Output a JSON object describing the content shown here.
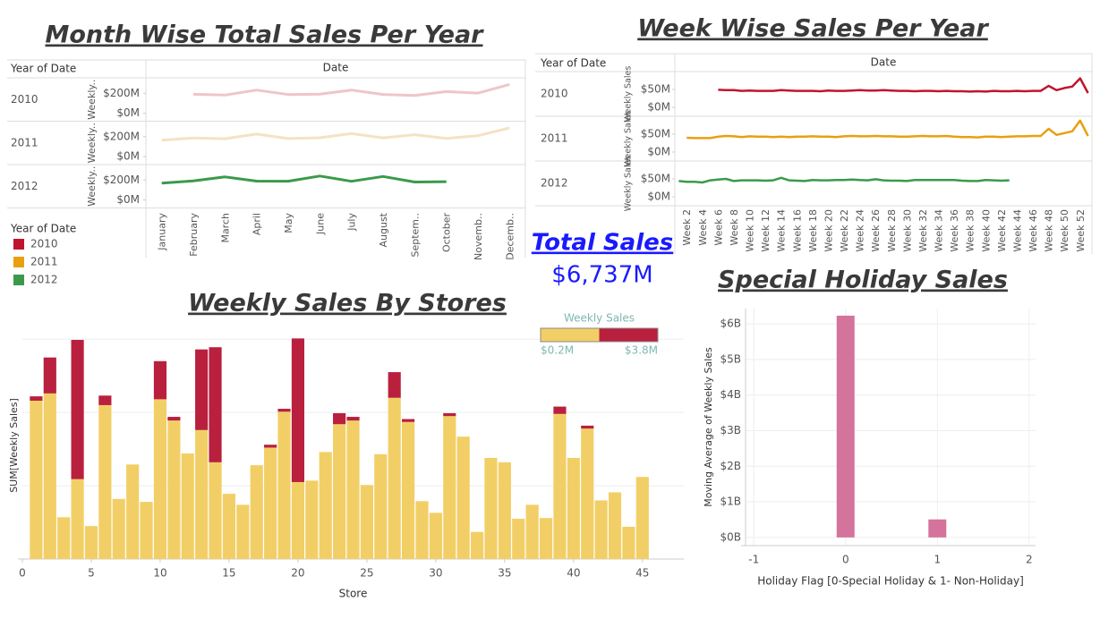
{
  "chart_data": [
    {
      "type": "line",
      "title": "Month Wise Total Sales Per Year",
      "row_header": "Year of Date",
      "column_header": "Date",
      "ylabel": "Weekly..",
      "legend_title": "Year of Date",
      "categories": [
        "January",
        "February",
        "March",
        "April",
        "May",
        "June",
        "July",
        "August",
        "Septem..",
        "October",
        "Novemb..",
        "Decemb.."
      ],
      "ylim": [
        -80000000,
        355000000
      ],
      "yticks": [
        {
          "value": 0,
          "label": "$0M"
        },
        {
          "value": 200000000,
          "label": "$200M"
        }
      ],
      "series": [
        {
          "name": "2010",
          "color": "#c0152f",
          "line_color": "#efc5ca",
          "values": [
            null,
            190000000,
            182000000,
            232000000,
            187000000,
            192000000,
            232000000,
            188000000,
            178000000,
            217000000,
            202000000,
            289000000
          ]
        },
        {
          "name": "2011",
          "color": "#e8a010",
          "line_color": "#f5e2c4",
          "values": [
            164000000,
            186000000,
            179000000,
            226000000,
            181000000,
            189000000,
            230000000,
            188000000,
            220000000,
            183000000,
            210000000,
            288000000
          ]
        },
        {
          "name": "2012",
          "color": "#3a9a4a",
          "line_color": "#3a9a4a",
          "values": [
            169000000,
            192000000,
            231000000,
            189000000,
            188000000,
            240000000,
            187000000,
            236000000,
            180000000,
            184000000,
            null,
            null
          ]
        }
      ]
    },
    {
      "type": "line",
      "title": "Week Wise Sales Per Year",
      "row_header": "Year of Date",
      "column_header": "Date",
      "ylabel": "Weekly Sales",
      "categories": [
        null,
        "Week 2",
        null,
        "Week 4",
        null,
        "Week 6",
        null,
        "Week 8",
        null,
        "Week 10",
        null,
        "Week 12",
        null,
        "Week 14",
        null,
        "Week 16",
        null,
        "Week 18",
        null,
        "Week 20",
        null,
        "Week 22",
        null,
        "Week 24",
        null,
        "Week 26",
        null,
        "Week 28",
        null,
        "Week 30",
        null,
        "Week 32",
        null,
        "Week 34",
        null,
        "Week 36",
        null,
        "Week 38",
        null,
        "Week 40",
        null,
        "Week 42",
        null,
        "Week 44",
        null,
        "Week 46",
        null,
        "Week 48",
        null,
        "Week 50",
        null,
        "Week 52",
        null
      ],
      "ylim": [
        -25000000,
        100000000
      ],
      "yticks": [
        {
          "value": 0,
          "label": "$0M"
        },
        {
          "value": 50000000,
          "label": "$50M"
        }
      ],
      "series": [
        {
          "name": "2010",
          "color": "#c0152f",
          "values": [
            null,
            null,
            null,
            null,
            null,
            49000000,
            48000000,
            48000000,
            46000000,
            47000000,
            46000000,
            46000000,
            46000000,
            48000000,
            47000000,
            46000000,
            46000000,
            46000000,
            45000000,
            47000000,
            46000000,
            46000000,
            47000000,
            48000000,
            47000000,
            47000000,
            48000000,
            47000000,
            46000000,
            46000000,
            45000000,
            46000000,
            46000000,
            45000000,
            46000000,
            45000000,
            45000000,
            44000000,
            45000000,
            44000000,
            46000000,
            45000000,
            45000000,
            46000000,
            45000000,
            46000000,
            46000000,
            60000000,
            48000000,
            54000000,
            58000000,
            81000000,
            40000000
          ]
        },
        {
          "name": "2011",
          "color": "#e8a010",
          "values": [
            null,
            40000000,
            39000000,
            39000000,
            39000000,
            43000000,
            45000000,
            44000000,
            42000000,
            44000000,
            43000000,
            43000000,
            42000000,
            43000000,
            42000000,
            43000000,
            43000000,
            44000000,
            43000000,
            43000000,
            42000000,
            44000000,
            45000000,
            44000000,
            44000000,
            45000000,
            44000000,
            44000000,
            43000000,
            43000000,
            44000000,
            45000000,
            44000000,
            44000000,
            45000000,
            43000000,
            42000000,
            42000000,
            41000000,
            43000000,
            43000000,
            42000000,
            43000000,
            44000000,
            44000000,
            45000000,
            45000000,
            65000000,
            48000000,
            53000000,
            58000000,
            88000000,
            45000000
          ]
        },
        {
          "name": "2012",
          "color": "#3a9a4a",
          "values": [
            44000000,
            42000000,
            42000000,
            40000000,
            46000000,
            48000000,
            50000000,
            44000000,
            46000000,
            46000000,
            46000000,
            45000000,
            46000000,
            53000000,
            46000000,
            45000000,
            44000000,
            47000000,
            46000000,
            46000000,
            47000000,
            47000000,
            48000000,
            47000000,
            46000000,
            49000000,
            46000000,
            45000000,
            45000000,
            44000000,
            47000000,
            47000000,
            47000000,
            47000000,
            47000000,
            47000000,
            45000000,
            44000000,
            44000000,
            47000000,
            46000000,
            45000000,
            46000000,
            null,
            null,
            null,
            null,
            null,
            null,
            null,
            null,
            null,
            null
          ]
        }
      ]
    },
    {
      "type": "bar",
      "stacked": true,
      "title": "Weekly Sales By Stores",
      "xlabel": "Store",
      "ylabel": "SUM[Weekly Sales]",
      "x": [
        1,
        2,
        3,
        4,
        5,
        6,
        7,
        8,
        9,
        10,
        11,
        12,
        13,
        14,
        15,
        16,
        17,
        18,
        19,
        20,
        21,
        22,
        23,
        24,
        25,
        26,
        27,
        28,
        29,
        30,
        31,
        32,
        33,
        34,
        35,
        36,
        37,
        38,
        39,
        40,
        41,
        42,
        43,
        44,
        45
      ],
      "xlim": [
        0,
        48
      ],
      "xticks": [
        0,
        5,
        10,
        15,
        20,
        25,
        30,
        35,
        40,
        45
      ],
      "ylim": [
        0,
        310000000
      ],
      "yticks": [
        0,
        100000000,
        200000000,
        300000000
      ],
      "grid": true,
      "color_scale": {
        "title": "Weekly Sales",
        "min": {
          "value": 200000,
          "label": "$0.2M"
        },
        "max": {
          "value": 3800000,
          "label": "$3.8M"
        }
      },
      "series": [
        {
          "color": "#f2cf66",
          "values": [
            216000000,
            226000000,
            57000000,
            109000000,
            45000000,
            210000000,
            82000000,
            129000000,
            78000000,
            218000000,
            189000000,
            144000000,
            176000000,
            132000000,
            89000000,
            74000000,
            128000000,
            152000000,
            201000000,
            105000000,
            107000000,
            146000000,
            184000000,
            189000000,
            101000000,
            143000000,
            220000000,
            187000000,
            79000000,
            63000000,
            195000000,
            167000000,
            37000000,
            138000000,
            132000000,
            55000000,
            74000000,
            56000000,
            198000000,
            138000000,
            178000000,
            80000000,
            91000000,
            44000000,
            112000000
          ]
        },
        {
          "color": "#b9203e",
          "values": [
            6000000,
            49000000,
            0,
            190000000,
            0,
            13000000,
            0,
            0,
            0,
            52000000,
            5000000,
            0,
            110000000,
            157000000,
            0,
            0,
            0,
            4000000,
            4000000,
            196000000,
            0,
            0,
            15000000,
            5000000,
            0,
            0,
            35000000,
            4000000,
            0,
            0,
            4000000,
            0,
            0,
            0,
            0,
            0,
            0,
            0,
            10000000,
            0,
            4000000,
            0,
            0,
            0,
            0
          ]
        }
      ]
    },
    {
      "type": "bar",
      "title": "Special Holiday Sales",
      "xlabel": "Holiday Flag [0-Special Holiday & 1- Non-Holiday]",
      "ylabel": "Moving Average of Weekly Sales",
      "x": [
        0,
        1
      ],
      "values": [
        6231000000,
        506000000
      ],
      "color": "#d4739b",
      "xlim": [
        -1.09,
        2.07
      ],
      "xticks": [
        -1,
        0,
        1,
        2
      ],
      "ylim": [
        -230000000,
        6430000000
      ],
      "yticks": [
        {
          "value": 0,
          "label": "$0B"
        },
        {
          "value": 1000000000,
          "label": "$1B"
        },
        {
          "value": 2000000000,
          "label": "$2B"
        },
        {
          "value": 3000000000,
          "label": "$3B"
        },
        {
          "value": 4000000000,
          "label": "$4B"
        },
        {
          "value": 5000000000,
          "label": "$5B"
        },
        {
          "value": 6000000000,
          "label": "$6B"
        }
      ],
      "grid": true
    }
  ],
  "kpi": {
    "title": "Total Sales",
    "value": "$6,737M"
  }
}
